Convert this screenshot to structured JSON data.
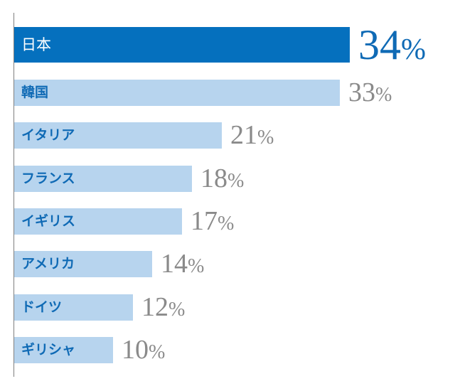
{
  "chart_data": {
    "type": "bar",
    "orientation": "horizontal",
    "title": "",
    "xlabel": "",
    "ylabel": "",
    "unit": "%",
    "xlim": [
      0,
      34
    ],
    "highlight_color": "#0570be",
    "bar_color": "#b7d4ee",
    "highlight_index": 0,
    "categories": [
      "日本",
      "韓国",
      "イタリア",
      "フランス",
      "イギリス",
      "アメリカ",
      "ドイツ",
      "ギリシャ"
    ],
    "values": [
      34,
      33,
      21,
      18,
      17,
      14,
      12,
      10
    ],
    "value_labels": [
      "34",
      "33",
      "21",
      "18",
      "17",
      "14",
      "12",
      "10"
    ],
    "percent_sign": "%"
  }
}
